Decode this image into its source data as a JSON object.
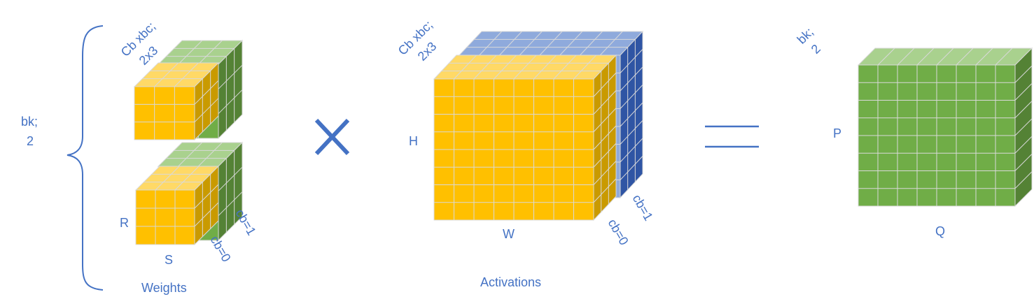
{
  "colors": {
    "label": "#4472c4",
    "yellow_front": "#ffc000",
    "yellow_top": "#ffd966",
    "yellow_side": "#c99a00",
    "green_front": "#70ad47",
    "green_top": "#a9d18e",
    "green_side": "#548235",
    "blue_top": "#8faadc",
    "blue_side": "#2f55a4",
    "grid": "#d9d9d9"
  },
  "weights": {
    "bk_label_line1": "bk;",
    "bk_label_line2": "2",
    "cb_label_line1": "Cb xbc;",
    "cb_label_line2": "2x3",
    "r_label": "R",
    "s_label": "S",
    "cb0_label": "cb=0",
    "cb1_label": "cb=1",
    "caption": "Weights"
  },
  "operator_multiply": "×",
  "activations": {
    "cb_label_line1": "Cb xbc;",
    "cb_label_line2": "2x3",
    "h_label": "H",
    "w_label": "W",
    "cb0_label": "cb=0",
    "cb1_label": "cb=1",
    "caption": "Activations"
  },
  "operator_equals": "=",
  "output": {
    "bk_label_line1": "bk;",
    "bk_label_line2": "2",
    "p_label": "P",
    "q_label": "Q"
  }
}
